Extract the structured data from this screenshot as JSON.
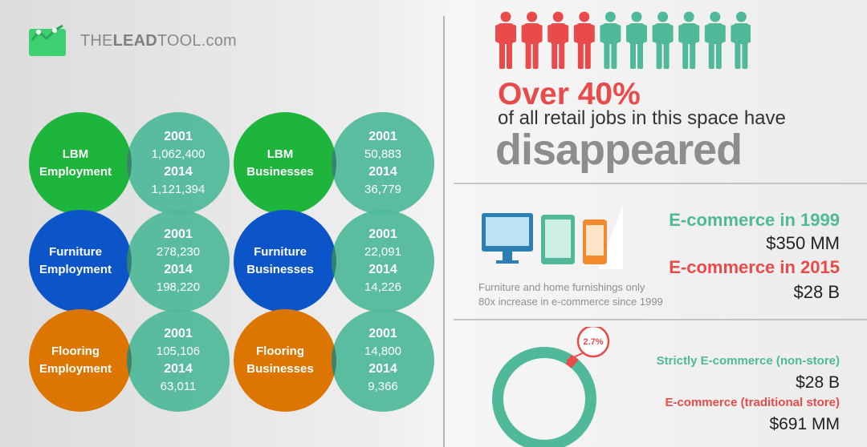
{
  "logo": {
    "text_prefix": "THE",
    "text_bold": "LEAD",
    "text_suffix": "TOOL.com"
  },
  "stats": [
    {
      "label_line1": "LBM",
      "label_line2": "Employment",
      "color": "#1eb53c",
      "year_a": "2001",
      "value_a": "1,062,400",
      "year_b": "2014",
      "value_b": "1,121,394"
    },
    {
      "label_line1": "LBM",
      "label_line2": "Businesses",
      "color": "#1eb53c",
      "year_a": "2001",
      "value_a": "50,883",
      "year_b": "2014",
      "value_b": "36,779"
    },
    {
      "label_line1": "Furniture",
      "label_line2": "Employment",
      "color": "#0c55c9",
      "year_a": "2001",
      "value_a": "278,230",
      "year_b": "2014",
      "value_b": "198,220"
    },
    {
      "label_line1": "Furniture",
      "label_line2": "Businesses",
      "color": "#0c55c9",
      "year_a": "2001",
      "value_a": "22,091",
      "year_b": "2014",
      "value_b": "14,226"
    },
    {
      "label_line1": "Flooring",
      "label_line2": "Employment",
      "color": "#dd7600",
      "year_a": "2001",
      "value_a": "105,106",
      "year_b": "2014",
      "value_b": "63,011"
    },
    {
      "label_line1": "Flooring",
      "label_line2": "Businesses",
      "color": "#dd7600",
      "year_a": "2001",
      "value_a": "14,800",
      "year_b": "2014",
      "value_b": "9,366"
    }
  ],
  "stat_circle_color": "#4fb99a",
  "people_icons": {
    "total": 10,
    "red_count": 4,
    "red": "#e94b4b",
    "green": "#4fb99a"
  },
  "headline": {
    "percent": "Over 40%",
    "subtitle": "of all retail jobs in this space have",
    "big_word": "disappeared"
  },
  "ecommerce": {
    "label_1999": "E-commerce in 1999",
    "value_1999": "$350 MM",
    "label_2015": "E-commerce in 2015",
    "value_2015": "$28 B",
    "note_line1": "Furniture and home furnishings only",
    "note_line2": "80x increase in e-commerce since 1999"
  },
  "devices": [
    "desktop-monitor-icon",
    "tablet-icon",
    "phone-icon"
  ],
  "share": {
    "percent_label": "2.7%",
    "percent_value": 2.7,
    "strict_label": "Strictly E-commerce (non-store)",
    "strict_value": "$28 B",
    "traditional_label": "E-commerce (traditional store)",
    "traditional_value": "$691 MM"
  }
}
